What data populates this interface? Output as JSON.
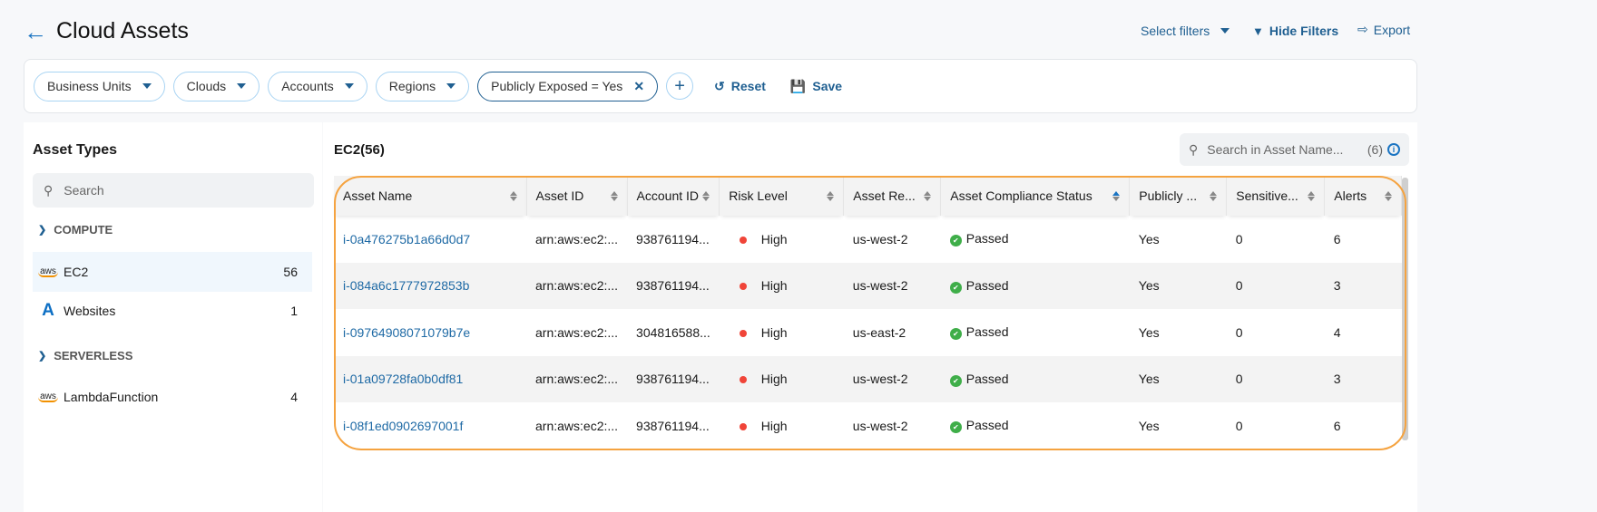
{
  "header": {
    "title": "Cloud Assets",
    "select_filters": "Select filters",
    "hide_filters": "Hide Filters",
    "export": "Export"
  },
  "filters": {
    "chips": [
      "Business Units",
      "Clouds",
      "Accounts",
      "Regions"
    ],
    "active_chip": "Publicly Exposed = Yes",
    "reset": "Reset",
    "save": "Save"
  },
  "sidebar": {
    "title": "Asset Types",
    "search_placeholder": "Search",
    "groups": [
      {
        "label": "COMPUTE",
        "items": [
          {
            "icon": "aws-icon",
            "label": "EC2",
            "count": "56"
          },
          {
            "icon": "azure-icon",
            "label": "Websites",
            "count": "1"
          }
        ]
      },
      {
        "label": "SERVERLESS",
        "items": [
          {
            "icon": "aws-icon",
            "label": "LambdaFunction",
            "count": "4"
          }
        ]
      }
    ]
  },
  "main": {
    "title": "EC2(56)",
    "search_placeholder": "Search in Asset Name...",
    "search_count": "(6)",
    "columns": [
      "Asset Name",
      "Asset ID",
      "Account ID",
      "Risk Level",
      "Asset Re...",
      "Asset Compliance Status",
      "Publicly ...",
      "Sensitive...",
      "Alerts"
    ],
    "sorted_column": "Asset Compliance Status",
    "rows": [
      [
        "i-0a476275b1a66d0d7",
        "arn:aws:ec2:...",
        "938761194...",
        "High",
        "us-west-2",
        "Passed",
        "Yes",
        "0",
        "6"
      ],
      [
        "i-084a6c1777972853b",
        "arn:aws:ec2:...",
        "938761194...",
        "High",
        "us-west-2",
        "Passed",
        "Yes",
        "0",
        "3"
      ],
      [
        "i-09764908071079b7e",
        "arn:aws:ec2:...",
        "304816588...",
        "High",
        "us-east-2",
        "Passed",
        "Yes",
        "0",
        "4"
      ],
      [
        "i-01a09728fa0b0df81",
        "arn:aws:ec2:...",
        "938761194...",
        "High",
        "us-west-2",
        "Passed",
        "Yes",
        "0",
        "3"
      ],
      [
        "i-08f1ed0902697001f",
        "arn:aws:ec2:...",
        "938761194...",
        "High",
        "us-west-2",
        "Passed",
        "Yes",
        "0",
        "6"
      ]
    ]
  },
  "colors": {
    "accent": "#1f5f91",
    "link": "#1f6aa5",
    "risk_high": "#f04438",
    "passed": "#3fae49",
    "highlight": "#f5a340"
  }
}
